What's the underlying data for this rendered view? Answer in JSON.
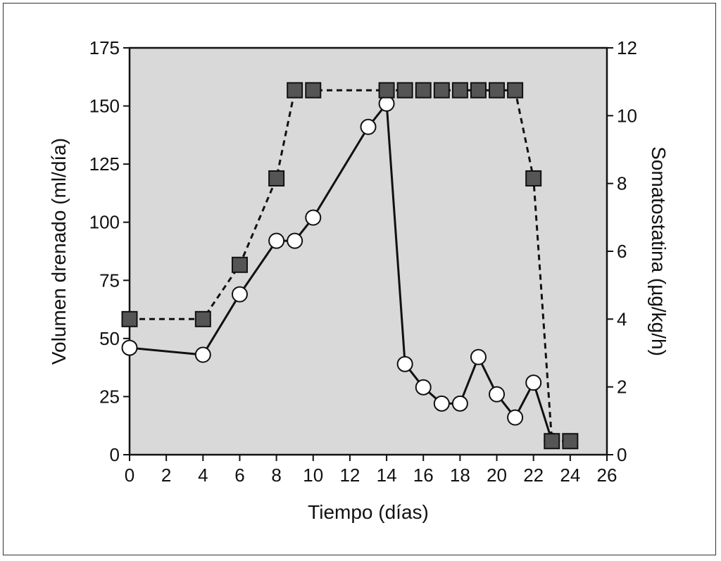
{
  "chart_data": {
    "type": "line",
    "xlabel": "Tiempo (días)",
    "ylabel": "Volumen drenado (ml/día)",
    "y2label": "Somatostatina (µg/kg/h)",
    "xlim": [
      0,
      26
    ],
    "ylim": [
      0,
      175
    ],
    "y2lim": [
      0,
      12
    ],
    "xticks": [
      0,
      2,
      4,
      6,
      8,
      10,
      12,
      14,
      16,
      18,
      20,
      22,
      24,
      26
    ],
    "yticks": [
      0,
      25,
      50,
      75,
      100,
      125,
      150,
      175
    ],
    "y2ticks": [
      0,
      2,
      4,
      6,
      8,
      10,
      12
    ],
    "grid": false,
    "background_color": "#d9d9d9",
    "series": [
      {
        "axis": "left",
        "marker": "circle-open",
        "line": "solid",
        "color": "#111111",
        "x": [
          0,
          4,
          6,
          8,
          9,
          10,
          13,
          14,
          15,
          16,
          17,
          18,
          19,
          20,
          21,
          22,
          23
        ],
        "y": [
          46,
          43,
          69,
          92,
          92,
          102,
          141,
          151,
          39,
          29,
          22,
          22,
          42,
          26,
          16,
          31,
          6
        ]
      },
      {
        "axis": "right",
        "marker": "square-filled",
        "line": "dashed",
        "color": "#555555",
        "x": [
          0,
          4,
          6,
          8,
          9,
          10,
          14,
          15,
          16,
          17,
          18,
          19,
          20,
          21,
          22,
          23,
          24
        ],
        "y": [
          4,
          4,
          5.6,
          8.15,
          10.75,
          10.75,
          10.75,
          10.75,
          10.75,
          10.75,
          10.75,
          10.75,
          10.75,
          10.75,
          8.15,
          0.4,
          0.4
        ]
      }
    ]
  }
}
